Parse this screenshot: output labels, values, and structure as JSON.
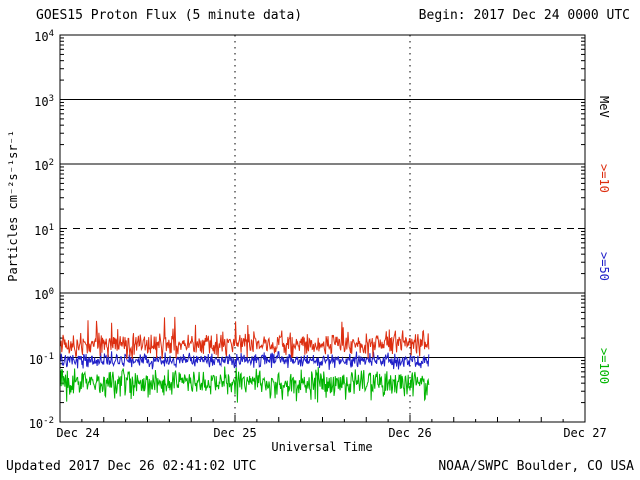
{
  "chart_data": {
    "type": "line",
    "title": "GOES15 Proton Flux (5 minute data)",
    "begin": "Begin: 2017 Dec 24 0000 UTC",
    "xlabel": "Universal Time",
    "ylabel": "Particles cm⁻²s⁻¹sr⁻¹",
    "right_axis_label": "MeV",
    "x_tick_labels": [
      "Dec 24",
      "Dec 25",
      "Dec 26",
      "Dec 27"
    ],
    "x_range_days": 3,
    "y_tick_exponents": [
      4,
      3,
      2,
      1,
      0,
      -1,
      -2
    ],
    "ylim_log10": [
      -2,
      4
    ],
    "y_scale": "log",
    "dashed_threshold_log10": 1,
    "sample_interval_minutes": 5,
    "data_start_day": 0,
    "data_end_day": 2.11,
    "series": [
      {
        "label": ">=10",
        "unit": "MeV",
        "color": "#dd2e10",
        "median_flux": 0.16,
        "min_flux": 0.07,
        "max_flux": 0.45
      },
      {
        "label": ">=50",
        "unit": "MeV",
        "color": "#2020c8",
        "median_flux": 0.09,
        "min_flux": 0.05,
        "max_flux": 0.18
      },
      {
        "label": ">=100",
        "unit": "MeV",
        "color": "#00b400",
        "median_flux": 0.042,
        "min_flux": 0.02,
        "max_flux": 0.1
      }
    ],
    "footer": {
      "updated": "Updated 2017 Dec 26 02:41:02 UTC",
      "credit": "NOAA/SWPC Boulder, CO USA"
    }
  }
}
